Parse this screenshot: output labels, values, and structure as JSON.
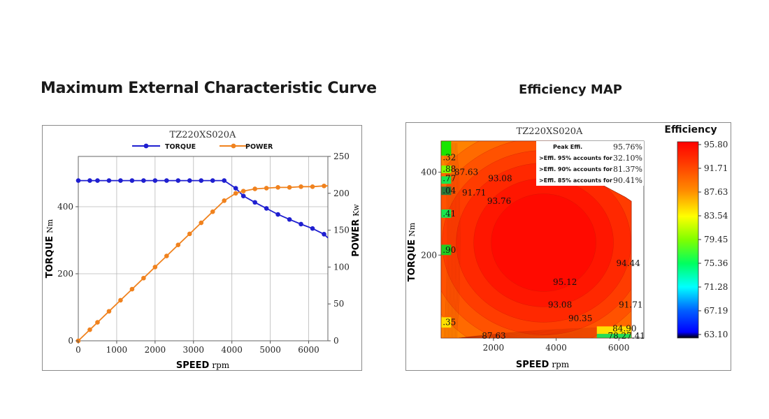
{
  "headings": {
    "left": "Maximum External Characteristic Curve",
    "right": "Efficiency MAP"
  },
  "chart_data": [
    {
      "type": "line",
      "title": "TZ220XS020A",
      "xlabel": "SPEED",
      "xlabel_unit": "rpm",
      "ylabel": "TORQUE",
      "ylabel_unit": "Nm",
      "y2label": "POWER",
      "y2label_unit": "Kw",
      "xlim": [
        0,
        6500
      ],
      "ylim": [
        0,
        550
      ],
      "y2lim": [
        0,
        250
      ],
      "xticks": [
        "0",
        "1000",
        "2000",
        "3000",
        "4000",
        "5000",
        "6000"
      ],
      "yticks": [
        "0",
        "200",
        "400"
      ],
      "y2ticks": [
        "0",
        "50",
        "100",
        "150",
        "200",
        "250"
      ],
      "grid": true,
      "legend": "top",
      "x": [
        0,
        300,
        500,
        800,
        1100,
        1400,
        1700,
        2000,
        2300,
        2600,
        2900,
        3200,
        3500,
        3800,
        4100,
        4300,
        4600,
        4900,
        5200,
        5500,
        5800,
        6100,
        6400,
        6500
      ],
      "series": [
        {
          "name": "TORQUE",
          "axis": "left",
          "color": "#1f1fd0",
          "values": [
            478,
            478,
            478,
            478,
            478,
            478,
            478,
            478,
            478,
            478,
            478,
            478,
            478,
            478,
            455,
            432,
            413,
            395,
            377,
            362,
            348,
            335,
            318,
            307
          ]
        },
        {
          "name": "POWER",
          "axis": "right",
          "color": "#f0821e",
          "values": [
            0,
            15,
            25,
            40,
            55,
            70,
            85,
            100,
            115,
            130,
            145,
            160,
            175,
            190,
            200,
            203,
            206,
            207,
            208,
            208,
            209,
            209,
            210,
            210
          ]
        }
      ]
    },
    {
      "type": "heatmap",
      "title": "TZ220XS020A",
      "xlabel": "SPEED",
      "xlabel_unit": "rpm",
      "ylabel": "TORQUE",
      "ylabel_unit": "Nm",
      "xlim": [
        330,
        6800
      ],
      "ylim": [
        0,
        475
      ],
      "xticks": [
        "2000",
        "4000",
        "6000"
      ],
      "yticks": [
        "200",
        "400"
      ],
      "colorbar_title": "Efficiency",
      "colorbar_ticks": [
        "95.80",
        "91.71",
        "87.63",
        "83.54",
        "79.45",
        "75.36",
        "71.28",
        "67.19",
        "63.10"
      ],
      "colorbar_range": [
        63.1,
        95.8
      ],
      "stats": [
        {
          "label": "Peak Effi.",
          "value": "95.76%"
        },
        {
          "label": ">Effi. 95% accounts for",
          "value": "32.10%"
        },
        {
          "label": ">Effi. 90% accounts for",
          "value": "81.37%"
        },
        {
          "label": ">Effi. 85% accounts for",
          "value": "90.41%"
        }
      ],
      "contour_labels": [
        {
          "text": ".32",
          "x": 380,
          "y": 435
        },
        {
          "text": ".88",
          "x": 380,
          "y": 408
        },
        {
          "text": "87.63",
          "x": 750,
          "y": 400
        },
        {
          "text": ".77",
          "x": 380,
          "y": 385
        },
        {
          "text": "93.08",
          "x": 1830,
          "y": 385
        },
        {
          "text": ".04",
          "x": 380,
          "y": 355
        },
        {
          "text": "91.71",
          "x": 1000,
          "y": 350
        },
        {
          "text": "93.76",
          "x": 1800,
          "y": 330
        },
        {
          "text": ".41",
          "x": 380,
          "y": 300
        },
        {
          "text": ".90",
          "x": 380,
          "y": 212
        },
        {
          "text": "94.44",
          "x": 5920,
          "y": 180
        },
        {
          "text": "95.12",
          "x": 3900,
          "y": 135
        },
        {
          "text": "93.08",
          "x": 3740,
          "y": 80
        },
        {
          "text": "91.71",
          "x": 6000,
          "y": 80
        },
        {
          "text": "90.35",
          "x": 4390,
          "y": 47
        },
        {
          "text": ".35",
          "x": 380,
          "y": 38
        },
        {
          "text": "84.90",
          "x": 5800,
          "y": 23
        },
        {
          "text": "87.63",
          "x": 1630,
          "y": 5
        },
        {
          "text": "78.27.41",
          "x": 5650,
          "y": 5
        }
      ],
      "envelope": {
        "speed": [
          330,
          4100,
          4500,
          5200,
          6200,
          6400
        ],
        "max_torque": [
          475,
          475,
          430,
          380,
          340,
          330
        ]
      },
      "peak_region": {
        "speed": 3600,
        "torque": 230,
        "efficiency": 95.76
      }
    }
  ]
}
